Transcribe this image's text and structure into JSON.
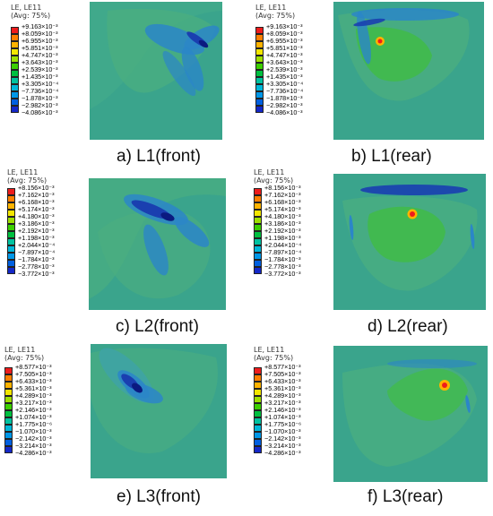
{
  "colors": [
    "#ee1c1c",
    "#ff7f00",
    "#ffb300",
    "#f3e600",
    "#9ee000",
    "#3ccf00",
    "#00c040",
    "#00c2a0",
    "#00b7d9",
    "#0097e8",
    "#0060e0",
    "#1428c8"
  ],
  "panels": [
    {
      "caption": "a) L1(front)",
      "legend": {
        "title": "LE, LE11",
        "subtitle": "(Avg: 75%)",
        "values": [
          "+9.163×10⁻³",
          "+8.059×10⁻³",
          "+6.955×10⁻³",
          "+5.851×10⁻³",
          "+4.747×10⁻³",
          "+3.643×10⁻³",
          "+2.539×10⁻³",
          "+1.435×10⁻³",
          "+3.305×10⁻⁴",
          "−7.736×10⁻⁴",
          "−1.878×10⁻³",
          "−2.982×10⁻³",
          "−4.086×10⁻³"
        ]
      }
    },
    {
      "caption": "b) L1(rear)",
      "legend": {
        "title": "LE, LE11",
        "subtitle": "(Avg: 75%)",
        "values": [
          "+9.163×10⁻³",
          "+8.059×10⁻³",
          "+6.955×10⁻³",
          "+5.851×10⁻³",
          "+4.747×10⁻³",
          "+3.643×10⁻³",
          "+2.539×10⁻³",
          "+1.435×10⁻³",
          "+3.305×10⁻⁴",
          "−7.736×10⁻⁴",
          "−1.878×10⁻³",
          "−2.982×10⁻³",
          "−4.086×10⁻³"
        ]
      }
    },
    {
      "caption": "c) L2(front)",
      "legend": {
        "title": "LE, LE11",
        "subtitle": "(Avg: 75%)",
        "values": [
          "+8.156×10⁻³",
          "+7.162×10⁻³",
          "+6.168×10⁻³",
          "+5.174×10⁻³",
          "+4.180×10⁻³",
          "+3.186×10⁻³",
          "+2.192×10⁻³",
          "+1.198×10⁻³",
          "+2.044×10⁻⁴",
          "−7.897×10⁻⁴",
          "−1.784×10⁻³",
          "−2.778×10⁻³",
          "−3.772×10⁻³"
        ]
      }
    },
    {
      "caption": "d) L2(rear)",
      "legend": {
        "title": "LE, LE11",
        "subtitle": "(Avg: 75%)",
        "values": [
          "+8.156×10⁻³",
          "+7.162×10⁻³",
          "+6.168×10⁻³",
          "+5.174×10⁻³",
          "+4.180×10⁻³",
          "+3.186×10⁻³",
          "+2.192×10⁻³",
          "+1.198×10⁻³",
          "+2.044×10⁻⁴",
          "−7.897×10⁻⁴",
          "−1.784×10⁻³",
          "−2.778×10⁻³",
          "−3.772×10⁻³"
        ]
      }
    },
    {
      "caption": "e) L3(front)",
      "legend": {
        "title": "LE, LE11",
        "subtitle": "(Avg: 75%)",
        "values": [
          "+8.577×10⁻³",
          "+7.505×10⁻³",
          "+6.433×10⁻³",
          "+5.361×10⁻³",
          "+4.289×10⁻³",
          "+3.217×10⁻³",
          "+2.146×10⁻³",
          "+1.074×10⁻³",
          "+1.775×10⁻⁶",
          "−1.070×10⁻³",
          "−2.142×10⁻³",
          "−3.214×10⁻³",
          "−4.286×10⁻³"
        ]
      }
    },
    {
      "caption": "f) L3(rear)",
      "legend": {
        "title": "LE, LE11",
        "subtitle": "(Avg: 75%)",
        "values": [
          "+8.577×10⁻³",
          "+7.505×10⁻³",
          "+6.433×10⁻³",
          "+5.361×10⁻³",
          "+4.289×10⁻³",
          "+3.217×10⁻³",
          "+2.146×10⁻³",
          "+1.074×10⁻³",
          "+1.775×10⁻⁶",
          "−1.070×10⁻³",
          "−2.142×10⁻³",
          "−3.214×10⁻³",
          "−4.286×10⁻³"
        ]
      }
    }
  ]
}
